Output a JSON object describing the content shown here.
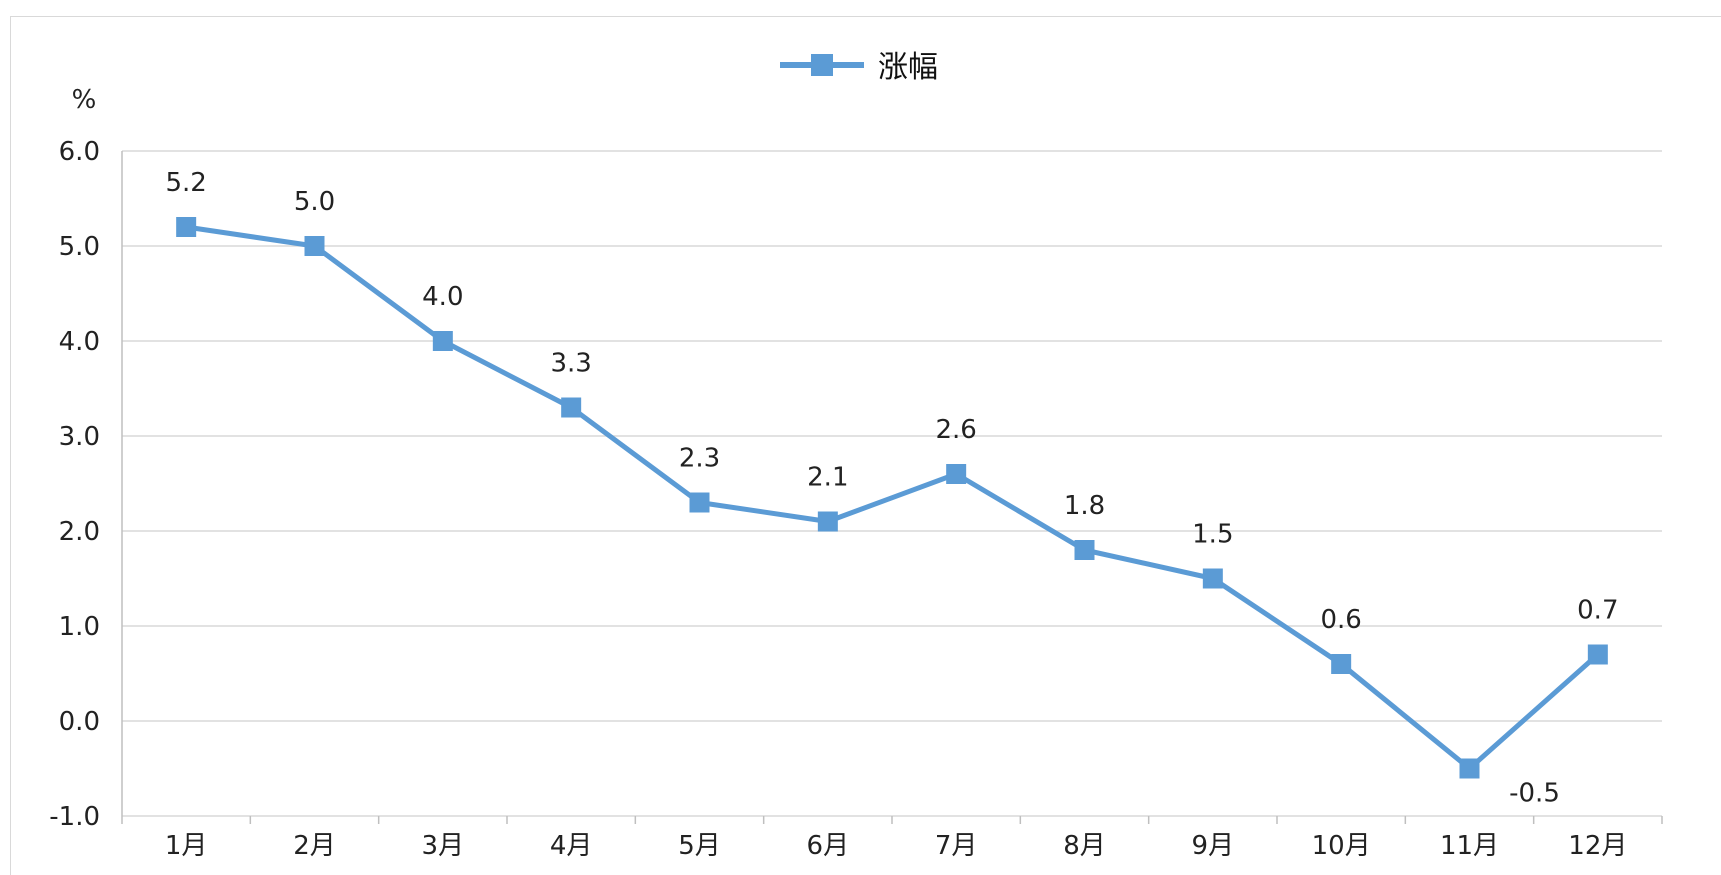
{
  "chart_data": {
    "type": "line",
    "categories": [
      "1月",
      "2月",
      "3月",
      "4月",
      "5月",
      "6月",
      "7月",
      "8月",
      "9月",
      "10月",
      "11月",
      "12月"
    ],
    "series": [
      {
        "name": "涨幅",
        "values": [
          5.2,
          5.0,
          4.0,
          3.3,
          2.3,
          2.1,
          2.6,
          1.8,
          1.5,
          0.6,
          -0.5,
          0.7
        ],
        "color": "#5b9bd5"
      }
    ],
    "data_labels": [
      "5.2",
      "5.0",
      "4.0",
      "3.3",
      "2.3",
      "2.1",
      "2.6",
      "1.8",
      "1.5",
      "0.6",
      "-0.5",
      "0.7"
    ],
    "y_ticks": [
      "6.0",
      "5.0",
      "4.0",
      "3.0",
      "2.0",
      "1.0",
      "0.0",
      "-1.0"
    ],
    "y_unit": "%",
    "ylim": [
      -1,
      6
    ],
    "grid": true,
    "legend_position": "top-center",
    "marker": "square"
  }
}
